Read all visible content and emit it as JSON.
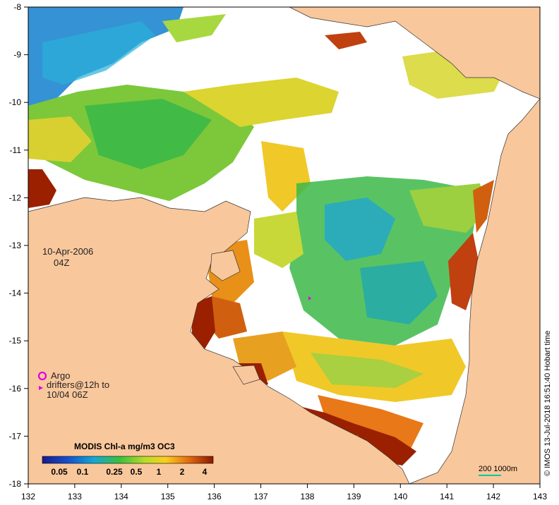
{
  "map": {
    "date_label": "10-Apr-2006",
    "time_label": "04Z",
    "lon_ticks": [
      "132",
      "133",
      "134",
      "135",
      "136",
      "137",
      "138",
      "139",
      "140",
      "141",
      "142",
      "143"
    ],
    "lat_ticks": [
      "-8",
      "-9",
      "-10",
      "-11",
      "-12",
      "-13",
      "-14",
      "-15",
      "-16",
      "-17",
      "-18"
    ],
    "colors": {
      "land": "#f9c79c",
      "no_data": "#ffffff",
      "deep_water": "#1a78c8",
      "coast_chl": "#9b2000"
    }
  },
  "legend": {
    "argo_label": "Argo",
    "drifter_line1": "drifters@12h to",
    "drifter_line2": "10/04 06Z",
    "argo_color": "#e000e0"
  },
  "colorbar": {
    "title": "MODIS Chl-a mg/m3 OC3",
    "labels": [
      "0.05",
      "0.1",
      "0.25",
      "0.5",
      "1",
      "2",
      "4"
    ]
  },
  "scale": {
    "label": "200  1000m"
  },
  "credit": "© IMOS 13-Jul-2018 16:51:40 Hobart time"
}
